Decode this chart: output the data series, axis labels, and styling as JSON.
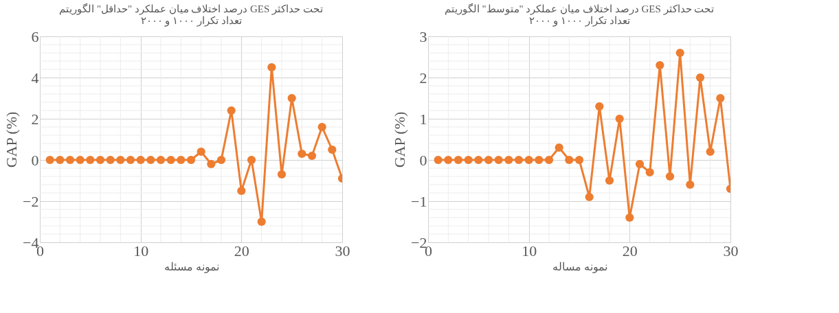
{
  "chart_data": [
    {
      "type": "line",
      "title": [
        "درصد اختلاف میان عملکرد \"حداقل\" الگوریتم GES تحت حداکثر",
        "تعداد تکرار ۱۰۰۰ و ۲۰۰۰"
      ],
      "xlabel": "نمونه مسئله",
      "ylabel": "GAP (%)",
      "x": [
        1,
        2,
        3,
        4,
        5,
        6,
        7,
        8,
        9,
        10,
        11,
        12,
        13,
        14,
        15,
        16,
        17,
        18,
        19,
        20,
        21,
        22,
        23,
        24,
        25,
        26,
        27,
        28,
        29,
        30
      ],
      "series": [
        {
          "color": "#ed7d31",
          "values": [
            0,
            0,
            0,
            0,
            0,
            0,
            0,
            0,
            0,
            0,
            0,
            0,
            0,
            0,
            0,
            0.4,
            -0.2,
            0,
            2.4,
            -1.5,
            0,
            -3,
            4.5,
            -0.7,
            3,
            0.3,
            0.2,
            1.6,
            0.5,
            -0.9
          ]
        }
      ],
      "xlim": [
        0,
        30
      ],
      "xticks": [
        0,
        10,
        20,
        30
      ],
      "ylim": [
        -4,
        6
      ],
      "yticks": [
        -4,
        -2,
        0,
        2,
        4,
        6
      ],
      "grid": true,
      "marker": "circle",
      "line_style": "solid"
    },
    {
      "type": "line",
      "title": [
        "درصد اختلاف میان عملکرد \"متوسط\" الگوریتم GES تحت حداکثر",
        "تعداد تکرار ۱۰۰۰ و ۲۰۰۰"
      ],
      "xlabel": "نمونه مساله",
      "ylabel": "GAP (%)",
      "x": [
        1,
        2,
        3,
        4,
        5,
        6,
        7,
        8,
        9,
        10,
        11,
        12,
        13,
        14,
        15,
        16,
        17,
        18,
        19,
        20,
        21,
        22,
        23,
        24,
        25,
        26,
        27,
        28,
        29,
        30
      ],
      "series": [
        {
          "color": "#ed7d31",
          "values": [
            0,
            0,
            0,
            0,
            0,
            0,
            0,
            0,
            0,
            0,
            0,
            0,
            0.3,
            0,
            0,
            -0.9,
            1.3,
            -0.5,
            1.0,
            -1.4,
            -0.1,
            -0.3,
            2.3,
            -0.4,
            2.6,
            -0.6,
            2.0,
            0.2,
            1.5,
            -0.7
          ]
        }
      ],
      "xlim": [
        0,
        30
      ],
      "xticks": [
        0,
        10,
        20,
        30
      ],
      "ylim": [
        -2,
        3
      ],
      "yticks": [
        -2,
        -1,
        0,
        1,
        2,
        3
      ],
      "grid": true,
      "marker": "circle",
      "line_style": "solid"
    }
  ]
}
